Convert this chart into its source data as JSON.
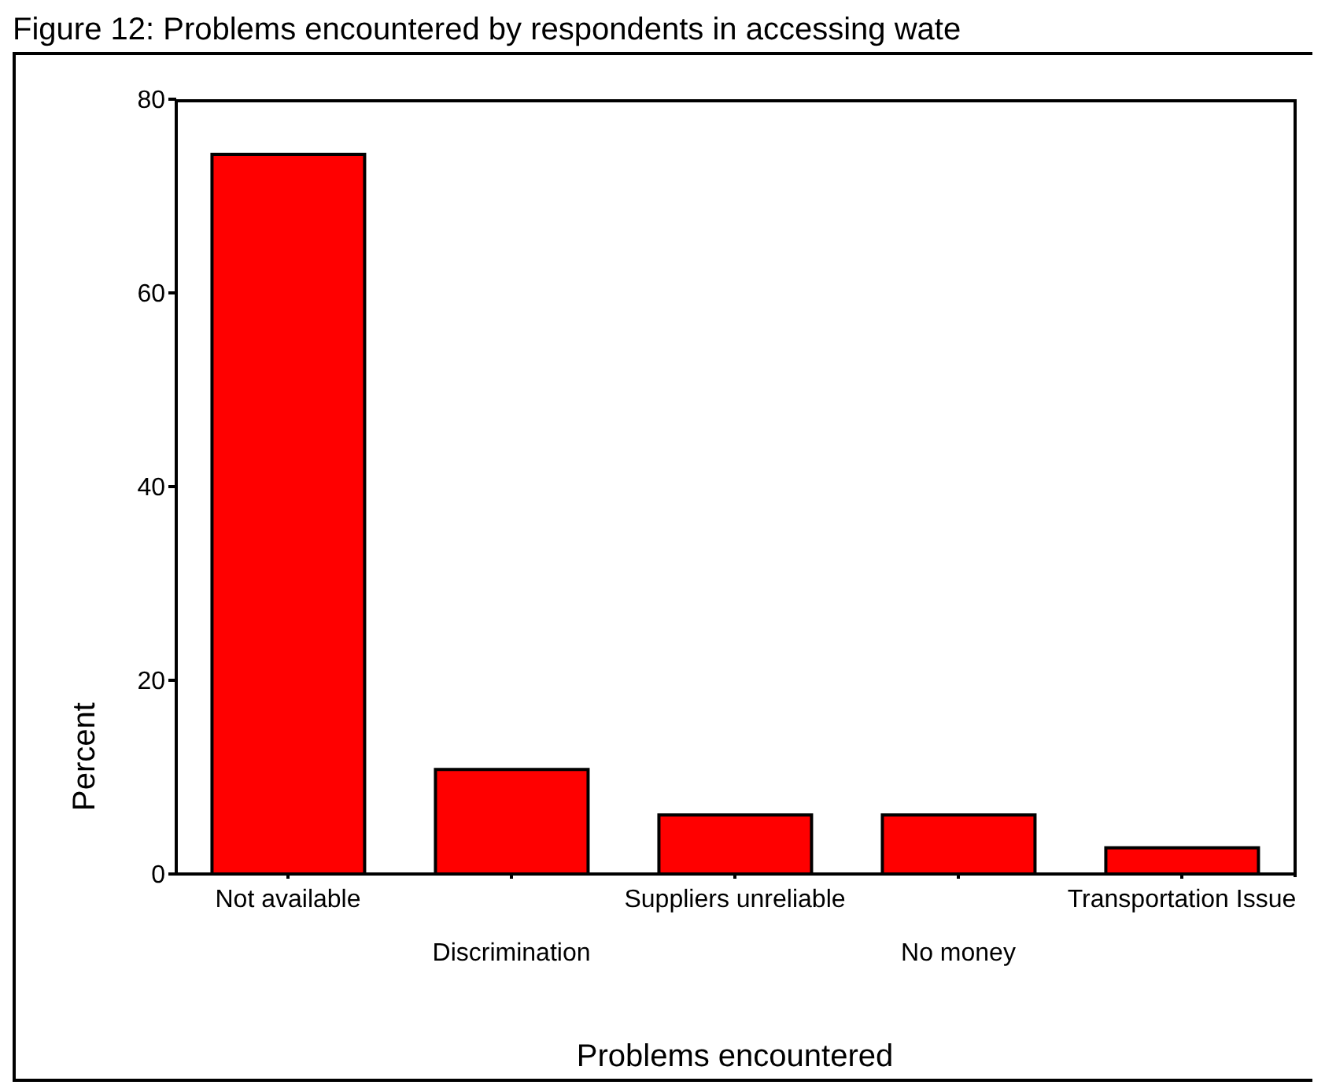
{
  "chart_data": {
    "type": "bar",
    "title": "Figure 12: Problems encountered by respondents in accessing wate",
    "xlabel": "Problems encountered",
    "ylabel": "Percent",
    "categories": [
      "Not available",
      "Discrimination",
      "Suppliers unreliable",
      "No money",
      "Transportation Issue"
    ],
    "values": [
      74.3,
      10.8,
      6.1,
      6.1,
      2.7
    ],
    "color": "#ff0000",
    "ylim": [
      0,
      80
    ],
    "yticks": [
      0,
      20,
      40,
      60,
      80
    ],
    "grid": false
  }
}
